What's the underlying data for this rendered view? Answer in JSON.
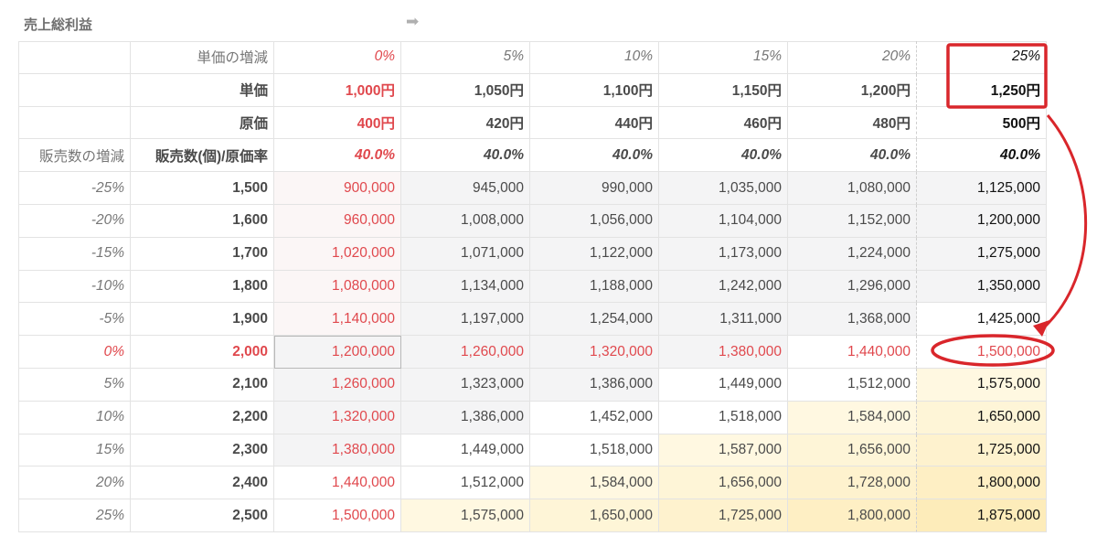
{
  "sheet": {
    "title": "売上総利益"
  },
  "header_rows": [
    {
      "blank": "",
      "label": "単価の増減",
      "values": [
        "0%",
        "5%",
        "10%",
        "15%",
        "20%",
        "25%"
      ]
    },
    {
      "blank": "",
      "label": "単価",
      "values": [
        "1,000円",
        "1,050円",
        "1,100円",
        "1,150円",
        "1,200円",
        "1,250円"
      ]
    },
    {
      "blank": "",
      "label": "原価",
      "values": [
        "400円",
        "420円",
        "440円",
        "460円",
        "480円",
        "500円"
      ]
    },
    {
      "blank": "販売数の増減",
      "label": "販売数(個)/原価率",
      "values": [
        "40.0%",
        "40.0%",
        "40.0%",
        "40.0%",
        "40.0%",
        "40.0%"
      ]
    }
  ],
  "data_rows": [
    {
      "change": "-25%",
      "qty": "1,500",
      "values": [
        "900,000",
        "945,000",
        "990,000",
        "1,035,000",
        "1,080,000",
        "1,125,000"
      ]
    },
    {
      "change": "-20%",
      "qty": "1,600",
      "values": [
        "960,000",
        "1,008,000",
        "1,056,000",
        "1,104,000",
        "1,152,000",
        "1,200,000"
      ]
    },
    {
      "change": "-15%",
      "qty": "1,700",
      "values": [
        "1,020,000",
        "1,071,000",
        "1,122,000",
        "1,173,000",
        "1,224,000",
        "1,275,000"
      ]
    },
    {
      "change": "-10%",
      "qty": "1,800",
      "values": [
        "1,080,000",
        "1,134,000",
        "1,188,000",
        "1,242,000",
        "1,296,000",
        "1,350,000"
      ]
    },
    {
      "change": "-5%",
      "qty": "1,900",
      "values": [
        "1,140,000",
        "1,197,000",
        "1,254,000",
        "1,311,000",
        "1,368,000",
        "1,425,000"
      ]
    },
    {
      "change": "0%",
      "qty": "2,000",
      "values": [
        "1,200,000",
        "1,260,000",
        "1,320,000",
        "1,380,000",
        "1,440,000",
        "1,500,000"
      ]
    },
    {
      "change": "5%",
      "qty": "2,100",
      "values": [
        "1,260,000",
        "1,323,000",
        "1,386,000",
        "1,449,000",
        "1,512,000",
        "1,575,000"
      ]
    },
    {
      "change": "10%",
      "qty": "2,200",
      "values": [
        "1,320,000",
        "1,386,000",
        "1,452,000",
        "1,518,000",
        "1,584,000",
        "1,650,000"
      ]
    },
    {
      "change": "15%",
      "qty": "2,300",
      "values": [
        "1,380,000",
        "1,449,000",
        "1,518,000",
        "1,587,000",
        "1,656,000",
        "1,725,000"
      ]
    },
    {
      "change": "20%",
      "qty": "2,400",
      "values": [
        "1,440,000",
        "1,512,000",
        "1,584,000",
        "1,656,000",
        "1,728,000",
        "1,800,000"
      ]
    },
    {
      "change": "25%",
      "qty": "2,500",
      "values": [
        "1,500,000",
        "1,575,000",
        "1,650,000",
        "1,725,000",
        "1,800,000",
        "1,875,000"
      ]
    }
  ],
  "colors": {
    "red_text": "#e0484d",
    "gray_text": "#777777",
    "dark_text": "#4a4a4a",
    "black_text": "#111111",
    "heat_low": "#f4f4f5",
    "heat_mid": "#ffffff",
    "heat_high": "#fdf0c8",
    "annotation_red": "#d9262b"
  },
  "icons": {
    "title_arrow": "right-arrow-icon"
  }
}
